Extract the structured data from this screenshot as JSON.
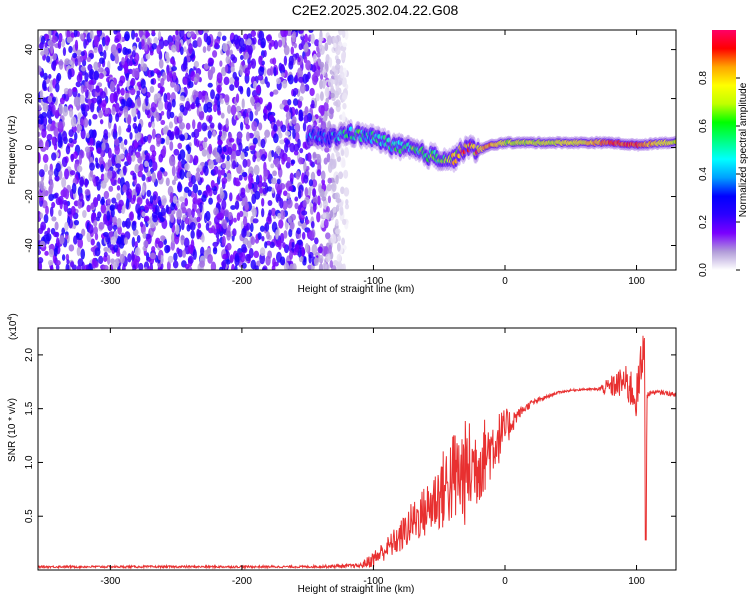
{
  "title": "C2E2.2025.302.04.22.G08",
  "chart_data": [
    {
      "type": "heatmap",
      "title": "C2E2.2025.302.04.22.G08",
      "xlabel": "Height of straight line (km)",
      "ylabel": "Frequency (Hz)",
      "xlim": [
        -355,
        130
      ],
      "ylim": [
        -50,
        48
      ],
      "x_ticks": [
        -300,
        -200,
        -100,
        0,
        100
      ],
      "x_tick_labels": [
        "-300",
        "-200",
        "-100",
        "0",
        "100"
      ],
      "y_ticks": [
        -40,
        -20,
        0,
        20,
        40
      ],
      "y_tick_labels": [
        "-40",
        "-20",
        "0",
        "20",
        "40"
      ],
      "colorbar": {
        "label": "Normalized spectral amplitude",
        "range": [
          0.0,
          1.0
        ],
        "ticks": [
          0.0,
          0.2,
          0.4,
          0.6,
          0.8
        ],
        "tick_labels": [
          "0.0",
          "0.2",
          "0.4",
          "0.6",
          "0.8"
        ],
        "colormap": [
          "#ffffff",
          "#b19cd9",
          "#7a00ff",
          "#2b00ff",
          "#0000ff",
          "#00a0ff",
          "#00ffff",
          "#00ff80",
          "#00ff00",
          "#c0ff00",
          "#ffff00",
          "#ffa500",
          "#ff0000",
          "#ff0066"
        ]
      },
      "noise_region_x": [
        -355,
        -120
      ],
      "tracked_frequency": {
        "x": [
          -150,
          -140,
          -130,
          -120,
          -110,
          -100,
          -90,
          -80,
          -70,
          -60,
          -50,
          -40,
          -30,
          -20,
          -10,
          0,
          20,
          40,
          60,
          80,
          100,
          120,
          130
        ],
        "y": [
          5,
          4,
          4,
          6,
          5,
          4,
          2,
          0,
          -1,
          -3,
          -4,
          -5,
          0,
          -1,
          1,
          2,
          2,
          2,
          2,
          2,
          1,
          2,
          2
        ],
        "amplitude": [
          0.3,
          0.35,
          0.4,
          0.45,
          0.5,
          0.45,
          0.5,
          0.55,
          0.6,
          0.6,
          0.65,
          0.7,
          0.85,
          0.8,
          0.85,
          0.7,
          0.7,
          0.72,
          0.75,
          0.9,
          0.9,
          0.75,
          0.7
        ]
      }
    },
    {
      "type": "line",
      "xlabel": "Height of straight line (km)",
      "ylabel": "SNR (10 * v/v)",
      "y_multiplier_label": "(x10",
      "y_multiplier_exp": "4",
      "xlim": [
        -355,
        130
      ],
      "ylim": [
        0,
        2.25
      ],
      "x_ticks": [
        -300,
        -200,
        -100,
        0,
        100
      ],
      "x_tick_labels": [
        "-300",
        "-200",
        "-100",
        "0",
        "100"
      ],
      "y_ticks": [
        0.5,
        1.0,
        1.5,
        2.0
      ],
      "y_tick_labels": [
        "0.5",
        "1.0",
        "1.5",
        "2.0"
      ],
      "series": [
        {
          "name": "SNR",
          "color": "#e83030",
          "x": [
            -355,
            -300,
            -250,
            -200,
            -150,
            -110,
            -100,
            -90,
            -80,
            -70,
            -60,
            -50,
            -40,
            -30,
            -20,
            -10,
            0,
            10,
            20,
            30,
            40,
            50,
            60,
            70,
            80,
            90,
            95,
            100,
            104,
            106,
            107,
            108,
            110,
            115,
            120,
            130
          ],
          "y": [
            0.03,
            0.03,
            0.03,
            0.03,
            0.03,
            0.04,
            0.1,
            0.2,
            0.3,
            0.45,
            0.55,
            0.7,
            0.85,
            0.9,
            1.0,
            1.15,
            1.3,
            1.45,
            1.55,
            1.6,
            1.65,
            1.67,
            1.68,
            1.68,
            1.7,
            1.75,
            1.7,
            1.6,
            1.9,
            2.2,
            0.28,
            1.6,
            1.65,
            1.65,
            1.65,
            1.63
          ],
          "noise_amplitude": [
            0.01,
            0.01,
            0.01,
            0.01,
            0.01,
            0.02,
            0.08,
            0.1,
            0.15,
            0.2,
            0.25,
            0.35,
            0.45,
            0.5,
            0.4,
            0.3,
            0.2,
            0.05,
            0.03,
            0.02,
            0.01,
            0.01,
            0.01,
            0.01,
            0.1,
            0.15,
            0.2,
            0.2,
            0.3,
            0.05,
            0.0,
            0.05,
            0.02,
            0.02,
            0.02,
            0.02
          ]
        }
      ]
    }
  ]
}
